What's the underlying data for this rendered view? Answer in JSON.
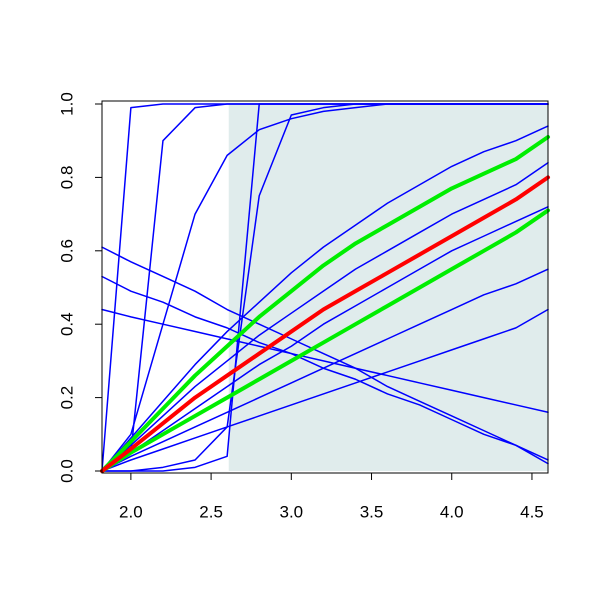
{
  "chart_data": {
    "type": "line",
    "xlim": [
      1.82,
      4.6
    ],
    "ylim": [
      0,
      1
    ],
    "xticks": [
      {
        "value": 2.0,
        "label": "2.0"
      },
      2.5,
      {
        "value": 3.0,
        "label": "3.0"
      },
      3.5,
      {
        "value": 4.0,
        "label": "4.0"
      },
      4.5
    ],
    "yticks": [
      {
        "value": 0,
        "label": "0.0"
      },
      0.2,
      0.4,
      0.6,
      0.8,
      {
        "value": 1,
        "label": "1.0"
      }
    ],
    "shaded_region": {
      "xlim": [
        2.61,
        4.6
      ],
      "color": "#e0ecec"
    },
    "x": [
      1.82,
      2.0,
      2.2,
      2.4,
      2.6,
      2.8,
      3.0,
      3.2,
      3.4,
      3.6,
      3.8,
      4.0,
      4.2,
      4.4,
      4.6
    ],
    "series": [
      {
        "color": "#0000ff",
        "line_width": 1.5,
        "values": [
          0,
          0.09,
          0.19,
          0.29,
          0.38,
          0.46,
          0.54,
          0.61,
          0.67,
          0.73,
          0.78,
          0.83,
          0.87,
          0.9,
          0.94
        ]
      },
      {
        "color": "#0000ff",
        "line_width": 1.5,
        "values": [
          0,
          0.03,
          0.06,
          0.09,
          0.12,
          0.15,
          0.18,
          0.21,
          0.24,
          0.27,
          0.3,
          0.33,
          0.36,
          0.39,
          0.44
        ]
      },
      {
        "color": "#0000ff",
        "line_width": 1.5,
        "values": [
          0,
          0.04,
          0.08,
          0.12,
          0.16,
          0.2,
          0.24,
          0.28,
          0.32,
          0.36,
          0.4,
          0.44,
          0.48,
          0.51,
          0.55
        ]
      },
      {
        "color": "#0000ff",
        "line_width": 1.5,
        "values": [
          0,
          0.05,
          0.11,
          0.17,
          0.23,
          0.29,
          0.34,
          0.4,
          0.45,
          0.5,
          0.55,
          0.6,
          0.64,
          0.68,
          0.72
        ]
      },
      {
        "color": "#0000ff",
        "line_width": 1.5,
        "values": [
          0,
          0.07,
          0.15,
          0.23,
          0.3,
          0.37,
          0.43,
          0.49,
          0.55,
          0.6,
          0.65,
          0.7,
          0.74,
          0.78,
          0.84
        ]
      },
      {
        "color": "#0000ff",
        "line_width": 1.5,
        "values": [
          0,
          0.99,
          1,
          1,
          1,
          1,
          1,
          1,
          1,
          1,
          1,
          1,
          1,
          1,
          1
        ]
      },
      {
        "color": "#0000ff",
        "line_width": 1.5,
        "values": [
          0,
          0.05,
          0.9,
          0.99,
          1,
          1,
          1,
          1,
          1,
          1,
          1,
          1,
          1,
          1,
          1
        ]
      },
      {
        "color": "#0000ff",
        "line_width": 1.5,
        "values": [
          0,
          0,
          0,
          0.01,
          0.04,
          1,
          1,
          1,
          1,
          1,
          1,
          1,
          1,
          1,
          1
        ]
      },
      {
        "color": "#0000ff",
        "line_width": 1.5,
        "values": [
          0,
          0,
          0.01,
          0.03,
          0.12,
          0.75,
          0.97,
          0.99,
          1,
          1,
          1,
          1,
          1,
          1,
          1
        ]
      },
      {
        "color": "#0000ff",
        "line_width": 1.5,
        "values": [
          0,
          0.1,
          0.4,
          0.7,
          0.86,
          0.93,
          0.96,
          0.98,
          0.99,
          1,
          1,
          1,
          1,
          1,
          1
        ]
      },
      {
        "color": "#0000ff",
        "line_width": 1.5,
        "values": [
          0.61,
          0.57,
          0.53,
          0.49,
          0.44,
          0.4,
          0.36,
          0.32,
          0.28,
          0.23,
          0.19,
          0.15,
          0.11,
          0.07,
          0.02
        ]
      },
      {
        "color": "#0000ff",
        "line_width": 1.5,
        "values": [
          0.53,
          0.49,
          0.46,
          0.42,
          0.39,
          0.35,
          0.32,
          0.28,
          0.25,
          0.21,
          0.18,
          0.14,
          0.1,
          0.07,
          0.03
        ]
      },
      {
        "color": "#0000ff",
        "line_width": 1.5,
        "values": [
          0.44,
          0.42,
          0.4,
          0.38,
          0.36,
          0.34,
          0.32,
          0.3,
          0.28,
          0.26,
          0.24,
          0.22,
          0.2,
          0.18,
          0.16
        ]
      },
      {
        "color": "#00ee00",
        "line_width": 4,
        "values": [
          0,
          0.08,
          0.17,
          0.26,
          0.34,
          0.42,
          0.49,
          0.56,
          0.62,
          0.67,
          0.72,
          0.77,
          0.81,
          0.85,
          0.91
        ]
      },
      {
        "color": "#00ee00",
        "line_width": 4,
        "values": [
          0,
          0.05,
          0.1,
          0.15,
          0.2,
          0.25,
          0.3,
          0.35,
          0.4,
          0.45,
          0.5,
          0.55,
          0.6,
          0.65,
          0.71
        ]
      },
      {
        "color": "#ff0000",
        "line_width": 4,
        "values": [
          0,
          0.06,
          0.13,
          0.2,
          0.26,
          0.32,
          0.38,
          0.44,
          0.49,
          0.54,
          0.59,
          0.64,
          0.69,
          0.74,
          0.8
        ]
      }
    ]
  }
}
